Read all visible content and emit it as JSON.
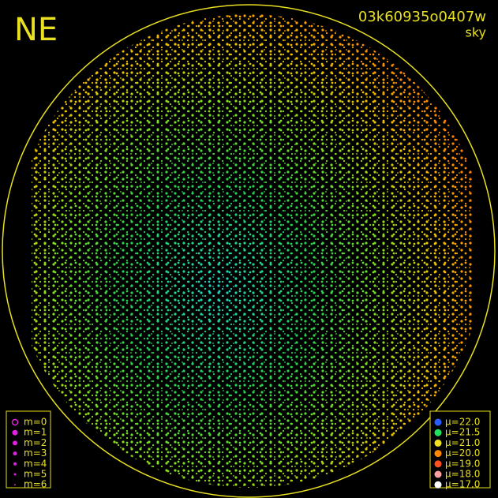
{
  "header": {
    "direction": "NE",
    "frame_id": "03k60935o0407w",
    "mode": "sky"
  },
  "magnitude_legend": {
    "color": "#e020e0",
    "items": [
      "m=0",
      "m=1",
      "m=2",
      "m=3",
      "m=4",
      "m=5",
      "m=6"
    ]
  },
  "brightness_legend": {
    "items": [
      {
        "label": "μ=22.0",
        "color": "#2a5cff"
      },
      {
        "label": "μ=21.5",
        "color": "#20e060"
      },
      {
        "label": "μ=21.0",
        "color": "#f0e020"
      },
      {
        "label": "μ=20.0",
        "color": "#ff8a00"
      },
      {
        "label": "μ=19.0",
        "color": "#ff5020"
      },
      {
        "label": "μ=18.0",
        "color": "#ffa0a0"
      },
      {
        "label": "μ=17.0",
        "color": "#ffffff"
      }
    ]
  }
}
